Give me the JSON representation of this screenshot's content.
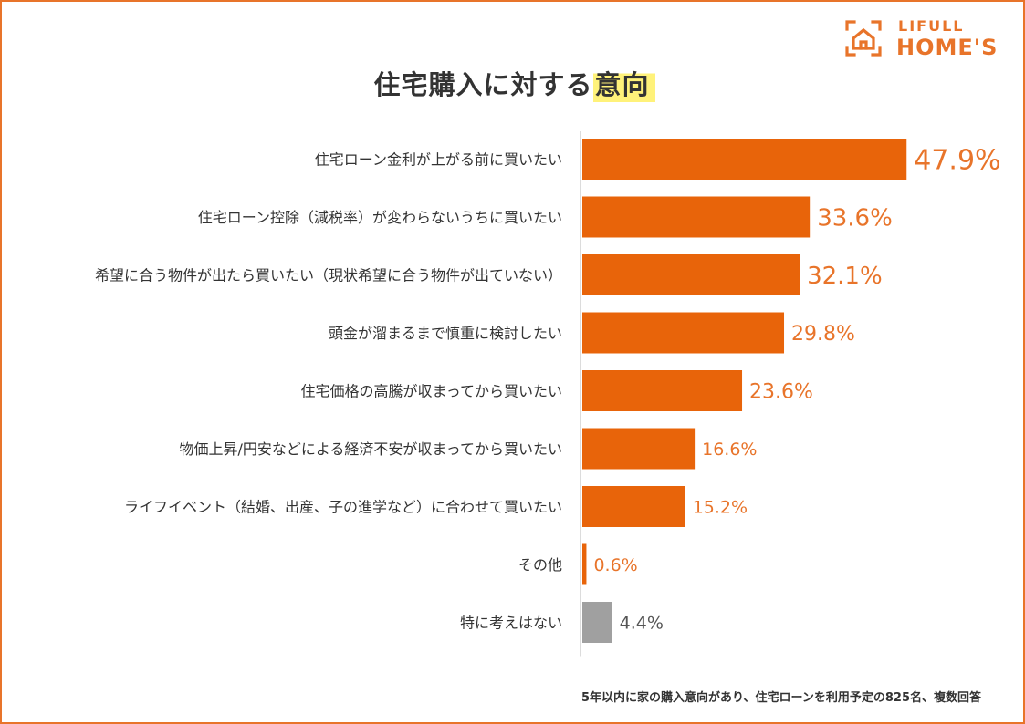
{
  "logo": {
    "line1": "LIFULL",
    "line2": "HOME'S"
  },
  "title": {
    "main": "住宅購入に対する",
    "highlight": "意向"
  },
  "footnote": "5年以内に家の購入意向があり、住宅ローンを利用予定の825名、複数回答",
  "colors": {
    "accent": "#e8742a",
    "bar": "#e8640a",
    "bar_other": "#a0a0a0",
    "highlight": "#fff27a"
  },
  "chart_data": {
    "type": "bar",
    "orientation": "horizontal",
    "unit": "%",
    "categories": [
      "住宅ローン金利が上がる前に買いたい",
      "住宅ローン控除（減税率）が変わらないうちに買いたい",
      "希望に合う物件が出たら買いたい（現状希望に合う物件が出ていない）",
      "頭金が溜まるまで慎重に検討したい",
      "住宅価格の高騰が収まってから買いたい",
      "物価上昇/円安などによる経済不安が収まってから買いたい",
      "ライフイベント（結婚、出産、子の進学など）に合わせて買いたい",
      "その他",
      "特に考えはない"
    ],
    "values": [
      47.9,
      33.6,
      32.1,
      29.8,
      23.6,
      16.6,
      15.2,
      0.6,
      4.4
    ],
    "value_labels": [
      "47.9%",
      "33.6%",
      "32.1%",
      "29.8%",
      "23.6%",
      "16.6%",
      "15.2%",
      "0.6%",
      "4.4%"
    ],
    "bar_colors": [
      "#e8640a",
      "#e8640a",
      "#e8640a",
      "#e8640a",
      "#e8640a",
      "#e8640a",
      "#e8640a",
      "#e8640a",
      "#a0a0a0"
    ],
    "xlim": [
      0,
      50
    ],
    "grid": false,
    "legend": "none"
  }
}
